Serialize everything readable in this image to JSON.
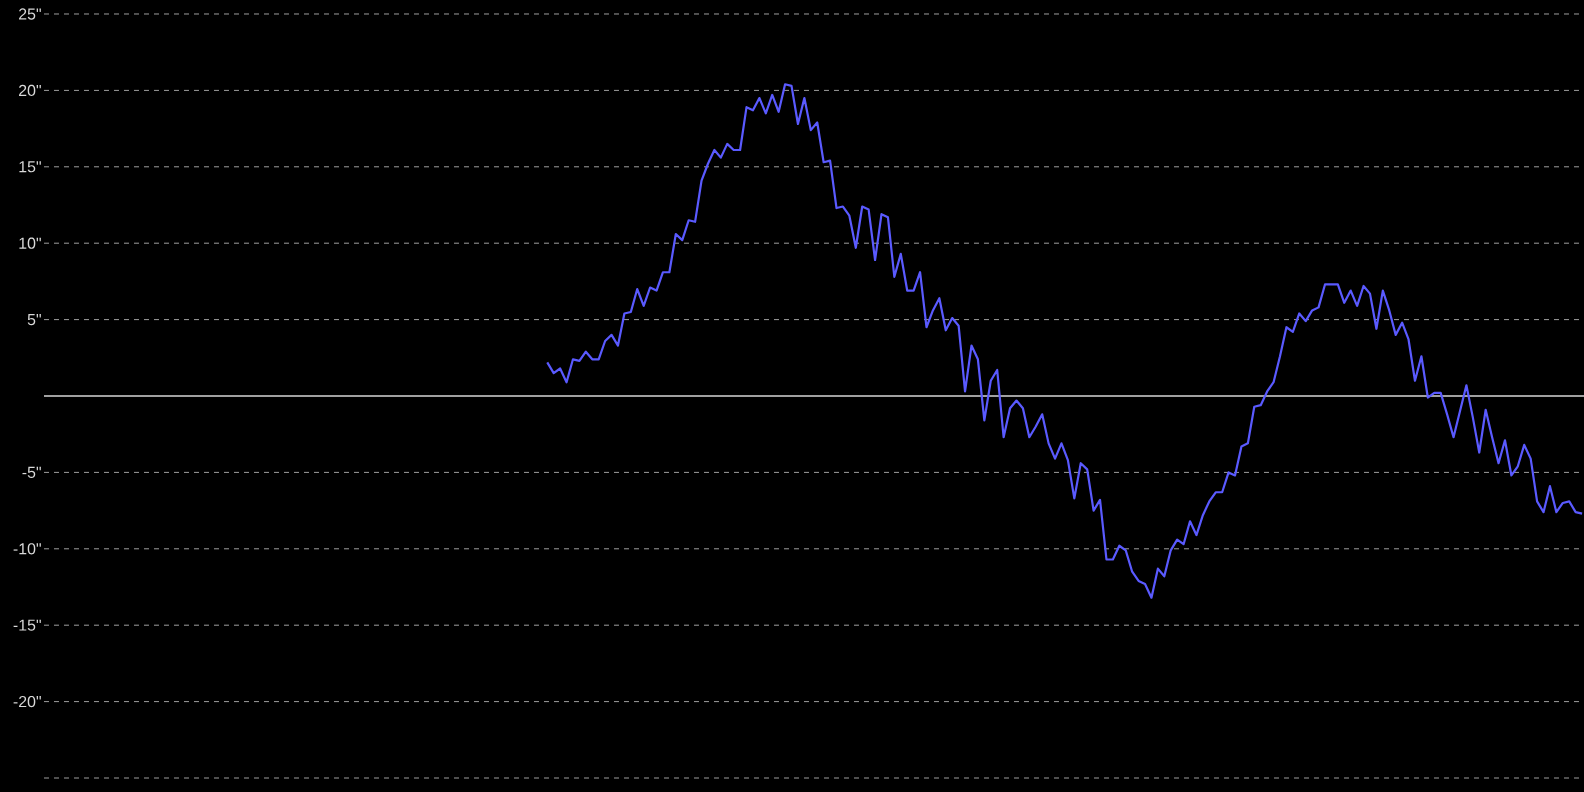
{
  "chart_data": {
    "type": "line",
    "categories": [
      null,
      null,
      null,
      null,
      null,
      null,
      null,
      null,
      null,
      null,
      null,
      null,
      null,
      null,
      null,
      null,
      null,
      null,
      null,
      null,
      null,
      null,
      null,
      null,
      null,
      null,
      null,
      null,
      null,
      null,
      null,
      null,
      null,
      null,
      null,
      null,
      null,
      null,
      null,
      null,
      null,
      null,
      null,
      null,
      null,
      null,
      null,
      null,
      null,
      null,
      null,
      null,
      null,
      null,
      null,
      null,
      null,
      null,
      null,
      null,
      null,
      null,
      null,
      null,
      null,
      null,
      null,
      null,
      null,
      null,
      null,
      null,
      null,
      null,
      null,
      null,
      null,
      null,
      null,
      null,
      null,
      null,
      null,
      null,
      null,
      null,
      null,
      null,
      null,
      null,
      null,
      null,
      null,
      null,
      null,
      null,
      null,
      null,
      null,
      null,
      null,
      null,
      null,
      null,
      null,
      null,
      null,
      null,
      null,
      null,
      null,
      null,
      null,
      null,
      null,
      null,
      null,
      null,
      null,
      null,
      null,
      null,
      null,
      null,
      null,
      null,
      null,
      null,
      null,
      null,
      null,
      null,
      null,
      null,
      null,
      null,
      null,
      null,
      null,
      null,
      null,
      null,
      null,
      null,
      null,
      null,
      null,
      null,
      null,
      null,
      null,
      null,
      null,
      null,
      null,
      null,
      null,
      null,
      null,
      null,
      null,
      null,
      null,
      null,
      null,
      null,
      null,
      null,
      null,
      null,
      null,
      null,
      null,
      null,
      null,
      null,
      null,
      null,
      null,
      null,
      null,
      null,
      null,
      null,
      null,
      null,
      null,
      null,
      null,
      null,
      null,
      null,
      null,
      null,
      null,
      null,
      null,
      null,
      null,
      null,
      null,
      null,
      null,
      null,
      null,
      null,
      null,
      null,
      null,
      null,
      null,
      null,
      null,
      null,
      null,
      null,
      null,
      null,
      null,
      null,
      null,
      null,
      null,
      null,
      null,
      null,
      null,
      null,
      null,
      null,
      null,
      null,
      null,
      null,
      null,
      null,
      null,
      null,
      null,
      null
    ],
    "values": [
      null,
      null,
      null,
      null,
      null,
      null,
      null,
      null,
      null,
      null,
      null,
      null,
      null,
      null,
      null,
      null,
      null,
      null,
      null,
      null,
      null,
      null,
      null,
      null,
      null,
      null,
      null,
      null,
      null,
      null,
      null,
      null,
      null,
      null,
      null,
      null,
      null,
      null,
      null,
      null,
      null,
      null,
      null,
      null,
      null,
      null,
      null,
      null,
      null,
      null,
      null,
      null,
      null,
      null,
      null,
      null,
      null,
      null,
      null,
      null,
      null,
      null,
      null,
      null,
      null,
      null,
      null,
      null,
      null,
      null,
      null,
      null,
      null,
      null,
      null,
      null,
      null,
      null,
      2.2,
      1.5,
      1.8,
      0.9,
      2.4,
      2.3,
      2.9,
      2.4,
      2.4,
      3.6,
      4.0,
      3.3,
      5.4,
      5.5,
      7.0,
      5.9,
      7.1,
      6.9,
      8.1,
      8.1,
      10.6,
      10.2,
      11.5,
      11.4,
      14.1,
      15.2,
      16.1,
      15.6,
      16.5,
      16.1,
      16.1,
      18.9,
      18.7,
      19.5,
      18.5,
      19.7,
      18.6,
      20.4,
      20.3,
      17.8,
      19.5,
      17.4,
      17.9,
      15.3,
      15.4,
      12.3,
      12.4,
      11.8,
      9.7,
      12.4,
      12.2,
      8.9,
      11.9,
      11.7,
      7.8,
      9.3,
      6.9,
      6.9,
      8.1,
      4.5,
      5.6,
      6.4,
      4.3,
      5.1,
      4.6,
      0.3,
      3.3,
      2.4,
      -1.6,
      1.0,
      1.7,
      -2.7,
      -0.8,
      -0.3,
      -0.8,
      -2.7,
      -2.0,
      -1.2,
      -3.1,
      -4.1,
      -3.1,
      -4.2,
      -6.7,
      -4.4,
      -4.8,
      -7.5,
      -6.8,
      -10.7,
      -10.7,
      -9.8,
      -10.1,
      -11.5,
      -12.1,
      -12.3,
      -13.2,
      -11.3,
      -11.8,
      -10.1,
      -9.4,
      -9.7,
      -8.2,
      -9.1,
      -7.8,
      -6.9,
      -6.3,
      -6.3,
      -5.0,
      -5.2,
      -3.3,
      -3.1,
      -0.7,
      -0.6,
      0.3,
      0.9,
      2.6,
      4.5,
      4.2,
      5.4,
      4.9,
      5.6,
      5.8,
      7.3,
      7.3,
      7.3,
      6.1,
      6.9,
      5.9,
      7.2,
      6.7,
      4.4,
      6.9,
      5.6,
      4.0,
      4.8,
      3.7,
      1.0,
      2.6,
      -0.1,
      0.2,
      0.2,
      -1.2,
      -2.7,
      -1.0,
      0.7,
      -1.4,
      -3.7,
      -0.9,
      -2.7,
      -4.4,
      -2.9,
      -5.2,
      -4.6,
      -3.2,
      -4.1,
      -6.9,
      -7.6,
      -5.9,
      -7.6,
      -7.0,
      -6.9,
      -7.6,
      -7.7
    ],
    "color": "#5a5aff",
    "ylim": [
      -25,
      25
    ],
    "yticks": [
      {
        "value": -25,
        "label": null
      },
      {
        "value": -20,
        "label": "-20\""
      },
      {
        "value": -15,
        "label": "-15\""
      },
      {
        "value": -10,
        "label": "-10\""
      },
      {
        "value": -5,
        "label": "-5\""
      },
      {
        "value": 0,
        "label": null
      },
      {
        "value": 5,
        "label": "5\""
      },
      {
        "value": 10,
        "label": "10\""
      },
      {
        "value": 15,
        "label": "15\""
      },
      {
        "value": 20,
        "label": "20\""
      },
      {
        "value": 25,
        "label": "25\""
      }
    ],
    "grid": "y",
    "tick_labels": "y",
    "ref_lines": [
      {
        "axis": "y",
        "value": 0,
        "color": "#a0a0a0"
      }
    ]
  }
}
